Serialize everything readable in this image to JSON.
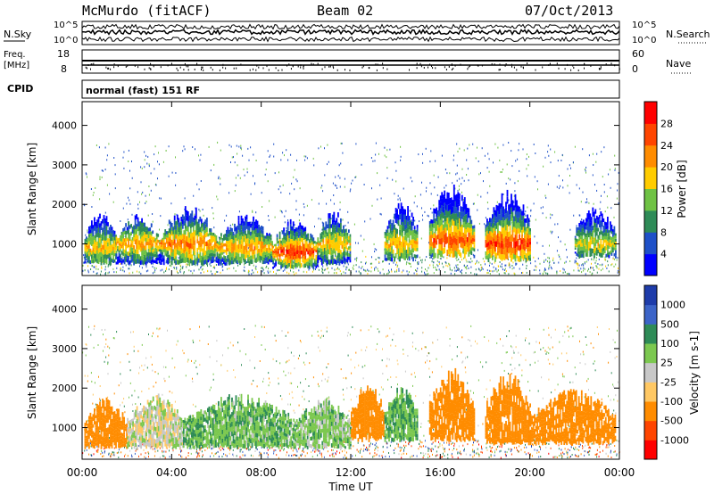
{
  "header": {
    "station": "McMurdo (fitACF)",
    "beam": "Beam 02",
    "date": "07/Oct/2013"
  },
  "top_panels": {
    "nsky_label": "N.Sky",
    "nsearch_label": "N.Search",
    "noise_tick_top": "10^5",
    "noise_tick_bottom": "10^0",
    "noise_right_tick_top": "10^5",
    "noise_right_tick_bottom": "10^0",
    "freq_label": "Freq.",
    "freq_unit": "[MHz]",
    "freq_ticks": [
      "18",
      "8"
    ],
    "nave_label": "Nave",
    "nave_ticks": [
      "60",
      "0"
    ],
    "cpid_label": "CPID",
    "cpid_text": "normal (fast) 151 RF"
  },
  "chart_data": [
    {
      "type": "heatmap",
      "name": "power",
      "ylabel": "Slant Range [km]",
      "xlabel": "",
      "xlim": [
        0,
        24
      ],
      "ylim": [
        200,
        4600
      ],
      "xticks": [
        "00:00",
        "04:00",
        "08:00",
        "12:00",
        "16:00",
        "20:00",
        "00:00"
      ],
      "yticks": [
        1000,
        2000,
        3000,
        4000
      ],
      "colorbar": {
        "label": "Power [dB]",
        "ticks": [
          "4",
          "8",
          "12",
          "16",
          "20",
          "24",
          "28"
        ],
        "colors": [
          "#0000ff",
          "#1e50c8",
          "#2e8b57",
          "#6fc244",
          "#ffcc00",
          "#ff8c00",
          "#ff4500",
          "#ff0000"
        ]
      },
      "echo_regions": [
        {
          "t_start": 0.1,
          "t_end": 1.5,
          "range_low": 500,
          "range_high": 1700,
          "peak_range": 900,
          "level_db": 20
        },
        {
          "t_start": 1.5,
          "t_end": 3.5,
          "range_low": 500,
          "range_high": 1600,
          "peak_range": 1000,
          "level_db": 22
        },
        {
          "t_start": 3.5,
          "t_end": 6.0,
          "range_low": 500,
          "range_high": 1800,
          "peak_range": 1000,
          "level_db": 24
        },
        {
          "t_start": 6.0,
          "t_end": 8.5,
          "range_low": 500,
          "range_high": 1600,
          "peak_range": 900,
          "level_db": 22
        },
        {
          "t_start": 8.5,
          "t_end": 10.5,
          "range_low": 400,
          "range_high": 1500,
          "peak_range": 800,
          "level_db": 28
        },
        {
          "t_start": 10.5,
          "t_end": 12.0,
          "range_low": 500,
          "range_high": 1700,
          "peak_range": 1000,
          "level_db": 20
        },
        {
          "t_start": 13.5,
          "t_end": 15.0,
          "range_low": 600,
          "range_high": 1900,
          "peak_range": 1000,
          "level_db": 20
        },
        {
          "t_start": 15.5,
          "t_end": 17.5,
          "range_low": 700,
          "range_high": 2300,
          "peak_range": 1100,
          "level_db": 26
        },
        {
          "t_start": 18.0,
          "t_end": 20.0,
          "range_low": 600,
          "range_high": 2200,
          "peak_range": 1000,
          "level_db": 28
        },
        {
          "t_start": 22.0,
          "t_end": 23.8,
          "range_low": 700,
          "range_high": 1800,
          "peak_range": 1000,
          "level_db": 18
        }
      ]
    },
    {
      "type": "heatmap",
      "name": "velocity",
      "ylabel": "Slant Range [km]",
      "xlabel": "Time UT",
      "xlim": [
        0,
        24
      ],
      "ylim": [
        200,
        4600
      ],
      "xticks": [
        "00:00",
        "04:00",
        "08:00",
        "12:00",
        "16:00",
        "20:00",
        "00:00"
      ],
      "yticks": [
        1000,
        2000,
        3000,
        4000
      ],
      "colorbar": {
        "label": "Velocity [m s-1]",
        "ticks": [
          "1000",
          "500",
          "100",
          "25",
          "-25",
          "-100",
          "-500",
          "-1000"
        ],
        "colors": [
          "#1e3caa",
          "#3c64c8",
          "#2e8b57",
          "#7cc850",
          "#c8c8c8",
          "#ffc864",
          "#ff8c00",
          "#ff4500",
          "#ff0000"
        ]
      },
      "echo_regions": [
        {
          "t_start": 0.1,
          "t_end": 2.0,
          "range_low": 500,
          "range_high": 1600,
          "velocity": -300
        },
        {
          "t_start": 2.0,
          "t_end": 4.5,
          "range_low": 500,
          "range_high": 1700,
          "velocity": 0
        },
        {
          "t_start": 4.5,
          "t_end": 9.5,
          "range_low": 500,
          "range_high": 1700,
          "velocity": 80
        },
        {
          "t_start": 9.5,
          "t_end": 12.0,
          "range_low": 500,
          "range_high": 1600,
          "velocity": 60
        },
        {
          "t_start": 12.0,
          "t_end": 13.5,
          "range_low": 700,
          "range_high": 2000,
          "velocity": -200
        },
        {
          "t_start": 13.5,
          "t_end": 15.0,
          "range_low": 700,
          "range_high": 1900,
          "velocity": 90
        },
        {
          "t_start": 15.5,
          "t_end": 17.5,
          "range_low": 700,
          "range_high": 2300,
          "velocity": -300
        },
        {
          "t_start": 18.0,
          "t_end": 20.0,
          "range_low": 600,
          "range_high": 2200,
          "velocity": -250
        },
        {
          "t_start": 20.0,
          "t_end": 23.8,
          "range_low": 600,
          "range_high": 1800,
          "velocity": -300
        }
      ]
    }
  ]
}
